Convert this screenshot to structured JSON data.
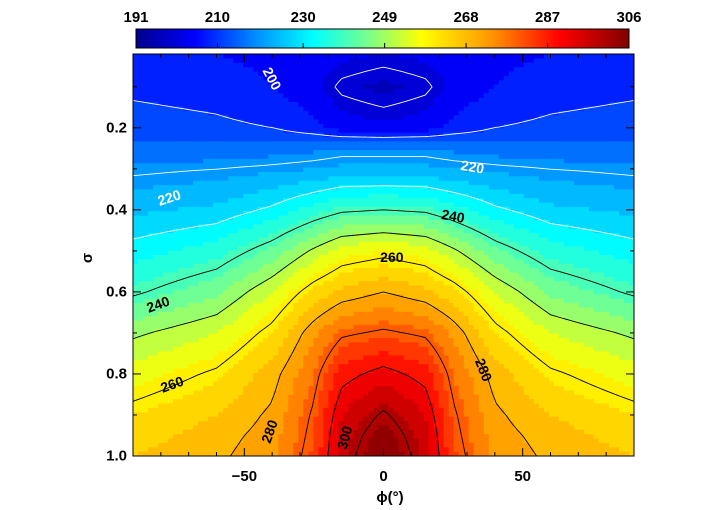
{
  "chart_data": {
    "type": "heatmap",
    "subtype": "filled-contour",
    "title": "",
    "xlabel": "ϕ(°)",
    "ylabel": "σ",
    "xlim": [
      -90,
      90
    ],
    "ylim": [
      0.02,
      1.0
    ],
    "y_axis_inverted": true,
    "x_ticks": [
      -50,
      0,
      50
    ],
    "y_ticks": [
      0.2,
      0.4,
      0.6,
      0.8,
      1.0
    ],
    "x_tick_labels": [
      "−50",
      "0",
      "50"
    ],
    "y_tick_labels": [
      "0.2",
      "0.4",
      "0.6",
      "0.8",
      "1.0"
    ],
    "colorbar": {
      "min": 191,
      "max": 306,
      "tick_values": [
        191,
        210,
        230,
        249,
        268,
        287,
        306
      ],
      "tick_labels": [
        "191",
        "210",
        "230",
        "249",
        "268",
        "287",
        "306"
      ],
      "colormap": "rainbow (blue to dark red)",
      "placement": "top"
    },
    "field_estimates": {
      "x_knots": [
        -90,
        -60,
        -40,
        -25,
        -15,
        0,
        15,
        25,
        40,
        60,
        90
      ],
      "sigma_knots": [
        0.02,
        0.1,
        0.2,
        0.25,
        0.3,
        0.4,
        0.5,
        0.6,
        0.7,
        0.8,
        0.9,
        0.95,
        1.0
      ],
      "values": [
        [
          207,
          206,
          205,
          204,
          203,
          202,
          203,
          204,
          205,
          206,
          207
        ],
        [
          209,
          208,
          206,
          203,
          199,
          197,
          199,
          203,
          206,
          208,
          209
        ],
        [
          212,
          211,
          210,
          207,
          204,
          203,
          204,
          207,
          210,
          211,
          212
        ],
        [
          215,
          215,
          216,
          217,
          218,
          218,
          218,
          217,
          216,
          215,
          215
        ],
        [
          219,
          220,
          221,
          222,
          223,
          223,
          223,
          222,
          221,
          220,
          219
        ],
        [
          225,
          227,
          231,
          236,
          239,
          240,
          239,
          236,
          231,
          227,
          225
        ],
        [
          232,
          236,
          243,
          251,
          256,
          258,
          256,
          251,
          243,
          236,
          232
        ],
        [
          239,
          245,
          254,
          263,
          267,
          270,
          267,
          263,
          254,
          245,
          239
        ],
        [
          249,
          254,
          262,
          273,
          279,
          281,
          279,
          273,
          262,
          254,
          249
        ],
        [
          256,
          261,
          268,
          278,
          288,
          292,
          288,
          278,
          268,
          261,
          256
        ],
        [
          262,
          266,
          271,
          281,
          294,
          301,
          294,
          281,
          271,
          266,
          262
        ],
        [
          264,
          268,
          272,
          282,
          296,
          304,
          296,
          282,
          272,
          268,
          264
        ],
        [
          266,
          269,
          273,
          283,
          297,
          306,
          297,
          283,
          273,
          269,
          266
        ]
      ]
    },
    "contour_levels": [
      200,
      210,
      220,
      230,
      240,
      250,
      260,
      270,
      280,
      290,
      300
    ],
    "contour_labels": [
      {
        "text": "200",
        "x": -40,
        "sigma": 0.08,
        "angle": 62,
        "color": "#ffffff"
      },
      {
        "text": "220",
        "x": 32,
        "sigma": 0.295,
        "angle": 10,
        "color": "#ffffff"
      },
      {
        "text": "220",
        "x": -77,
        "sigma": 0.37,
        "angle": -18,
        "color": "#ffffff"
      },
      {
        "text": "240",
        "x": 25,
        "sigma": 0.415,
        "angle": 10,
        "color": "#000000"
      },
      {
        "text": "260",
        "x": 3,
        "sigma": 0.515,
        "angle": 0,
        "color": "#000000"
      },
      {
        "text": "240",
        "x": -81,
        "sigma": 0.63,
        "angle": -20,
        "color": "#000000"
      },
      {
        "text": "280",
        "x": 36,
        "sigma": 0.79,
        "angle": 68,
        "color": "#000000"
      },
      {
        "text": "260",
        "x": -76,
        "sigma": 0.825,
        "angle": -20,
        "color": "#000000"
      },
      {
        "text": "280",
        "x": -41,
        "sigma": 0.94,
        "angle": -70,
        "color": "#000000"
      },
      {
        "text": "300",
        "x": -14,
        "sigma": 0.955,
        "angle": -75,
        "color": "#000000"
      }
    ]
  }
}
